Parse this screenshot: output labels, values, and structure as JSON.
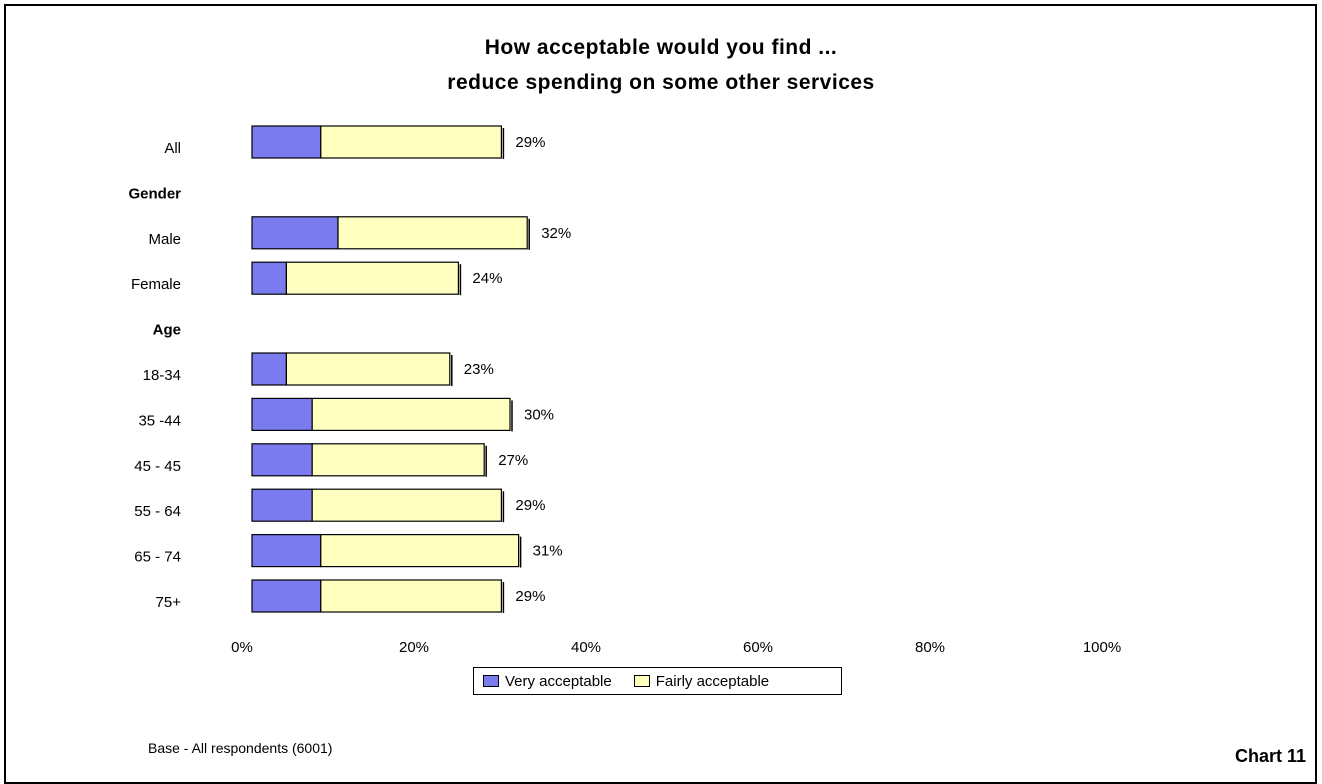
{
  "chart_data": {
    "type": "bar",
    "orientation": "horizontal",
    "stacked": true,
    "title": "How acceptable would you find ...",
    "subtitle": "reduce spending on some other services",
    "categories": [
      "All",
      "Gender",
      "Male",
      "Female",
      "Age",
      "18-34",
      "35 -44",
      "45 - 45",
      "55 - 64",
      "65 - 74",
      "75+"
    ],
    "group_headers": [
      "Gender",
      "Age"
    ],
    "series": [
      {
        "name": "Very acceptable",
        "color": "#7b7bf0",
        "values": [
          8,
          null,
          10,
          4,
          null,
          4,
          7,
          7,
          7,
          8,
          8
        ]
      },
      {
        "name": "Fairly acceptable",
        "color": "#ffffc0",
        "values": [
          21,
          null,
          22,
          20,
          null,
          19,
          23,
          20,
          22,
          23,
          21
        ]
      }
    ],
    "totals_labels": [
      "29%",
      "",
      "32%",
      "24%",
      "",
      "23%",
      "30%",
      "27%",
      "29%",
      "31%",
      "29%"
    ],
    "x_ticks": [
      "0%",
      "20%",
      "40%",
      "60%",
      "80%",
      "100%"
    ],
    "xlim": [
      0,
      100
    ],
    "grid": false,
    "legend_position": "bottom"
  },
  "footer": {
    "base_note": "Base - All respondents (6001)",
    "chart_label": "Chart 11"
  }
}
